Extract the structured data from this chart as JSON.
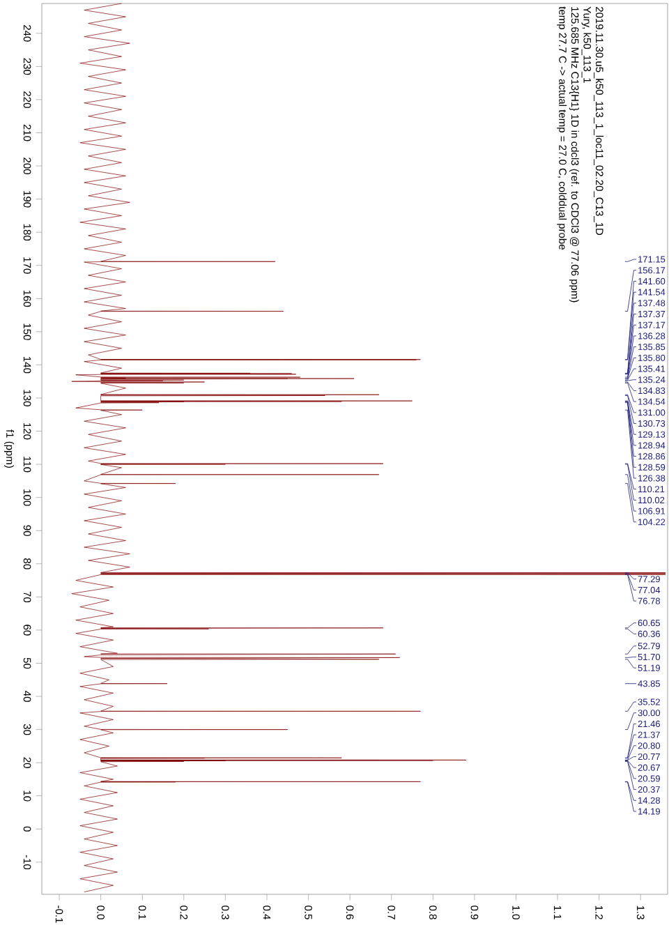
{
  "chart_data": {
    "type": "line",
    "title": "2019.11.30.u5_k50_113_1_loc11_02.20_C13_1D",
    "subtitle": "Yury, k50_113_1",
    "orientation": "horizontal",
    "ylabel": "f1 (ppm)",
    "ylim": [
      -19.7,
      249
    ],
    "xlim": [
      -0.142,
      1.365
    ],
    "yticks": [
      240,
      230,
      220,
      210,
      200,
      190,
      180,
      170,
      160,
      150,
      140,
      130,
      120,
      110,
      100,
      90,
      80,
      70,
      60,
      50,
      40,
      30,
      20,
      10,
      0,
      -10
    ],
    "xticks": [
      {
        "value": -0.1,
        "label": "-0.1"
      },
      {
        "value": 0,
        "label": "0.0"
      },
      {
        "value": 0.1,
        "label": "0.1"
      },
      {
        "value": 0.2,
        "label": "0.2"
      },
      {
        "value": 0.3,
        "label": "0.3"
      },
      {
        "value": 0.4,
        "label": "0.4"
      },
      {
        "value": 0.5,
        "label": "0.5"
      },
      {
        "value": 0.6,
        "label": "0.6"
      },
      {
        "value": 0.7,
        "label": "0.7"
      },
      {
        "value": 0.8,
        "label": "0.8"
      },
      {
        "value": 0.9,
        "label": "0.9"
      },
      {
        "value": 1,
        "label": "1.0"
      },
      {
        "value": 1.1,
        "label": "1.1"
      },
      {
        "value": 1.2,
        "label": "1.2"
      },
      {
        "value": 1.3,
        "label": "1.3"
      }
    ],
    "series": [
      {
        "color": "#800000",
        "x": [
          249,
          247,
          245,
          243,
          241,
          239,
          237,
          235,
          233,
          231,
          229,
          227,
          225,
          223,
          221,
          219,
          217,
          215,
          213,
          211,
          209,
          207,
          205,
          203,
          201,
          199,
          197,
          195,
          193,
          191,
          189,
          187,
          185,
          183,
          181,
          179,
          177,
          175,
          173,
          171.2,
          171.15,
          171.1,
          171,
          169,
          167,
          165,
          163,
          161,
          159,
          157,
          156.22,
          156.17,
          156.12,
          155,
          153,
          151,
          149,
          147,
          145,
          143,
          141.65,
          141.6,
          141.57,
          141.54,
          141.49,
          141,
          139,
          137.53,
          137.48,
          137.43,
          137.37,
          137.27,
          137.17,
          137.1,
          137,
          136.33,
          136.28,
          136.2,
          136,
          135.9,
          135.85,
          135.83,
          135.8,
          135.7,
          135.5,
          135.41,
          135.3,
          135.24,
          135.15,
          135,
          134.9,
          134.83,
          134.7,
          134.54,
          134.45,
          133,
          131.05,
          131,
          130.9,
          130.73,
          130.65,
          129.2,
          129.13,
          129.03,
          128.94,
          128.9,
          128.86,
          128.7,
          128.59,
          128.5,
          127,
          126.45,
          126.38,
          126.3,
          125,
          123,
          121,
          119,
          117,
          115,
          113,
          111,
          110.26,
          110.21,
          110.1,
          110.02,
          109.95,
          109,
          106.96,
          106.91,
          106.86,
          105,
          104.27,
          104.22,
          104.17,
          103,
          101,
          99,
          97,
          95,
          93,
          91,
          89,
          87,
          85,
          83,
          81,
          79,
          77.34,
          77.29,
          77.16,
          77.04,
          76.9,
          76.78,
          76.73,
          75,
          73,
          71,
          69,
          67,
          65,
          63,
          61,
          60.7,
          60.65,
          60.5,
          60.36,
          60.3,
          59,
          57,
          55,
          53,
          52.84,
          52.79,
          52.5,
          52,
          51.75,
          51.7,
          51.45,
          51.19,
          51.14,
          49,
          47,
          45,
          43.9,
          43.85,
          43.8,
          43,
          41,
          39,
          37,
          35.57,
          35.52,
          35.47,
          35,
          33,
          31,
          30.05,
          30,
          29.95,
          29,
          27,
          25,
          23,
          21.51,
          21.46,
          21.42,
          21.37,
          21.3,
          20.83,
          20.8,
          20.785,
          20.77,
          20.72,
          20.67,
          20.63,
          20.59,
          20.5,
          20.37,
          20.3,
          19,
          17,
          15,
          14.33,
          14.28,
          14.23,
          14.19,
          14.14,
          13,
          11,
          9,
          7,
          5,
          3,
          1,
          -1,
          -3,
          -5,
          -7,
          -9,
          -11,
          -13,
          -15,
          -17,
          -19
        ],
        "values": [
          0.05,
          -0.04,
          0.06,
          -0.03,
          0.05,
          -0.04,
          0.07,
          -0.03,
          0.05,
          -0.05,
          0.06,
          -0.03,
          0.05,
          -0.04,
          0.06,
          -0.04,
          0.05,
          -0.03,
          0.06,
          -0.04,
          0.05,
          -0.05,
          0.06,
          -0.03,
          0.05,
          -0.04,
          0.06,
          -0.04,
          0.05,
          -0.03,
          0.07,
          -0.04,
          0.05,
          -0.05,
          0.06,
          -0.03,
          0.05,
          -0.04,
          0.06,
          0,
          0.42,
          0,
          -0.04,
          0.05,
          -0.03,
          0.06,
          -0.04,
          0.05,
          -0.04,
          0.06,
          0,
          0.44,
          0,
          -0.03,
          0.05,
          -0.04,
          0.06,
          -0.04,
          0.05,
          -0.03,
          0,
          0.77,
          0,
          0.76,
          0,
          -0.04,
          0.05,
          0,
          0.36,
          0,
          0.46,
          0,
          0.47,
          0,
          -0.06,
          0,
          0.48,
          0,
          0.06,
          0,
          0.61,
          0,
          0.45,
          0,
          0,
          0.2,
          0,
          0.15,
          0,
          -0.07,
          0,
          0.25,
          0,
          0.2,
          0,
          0.06,
          0,
          0.67,
          0,
          0.54,
          0,
          0,
          0.75,
          0,
          0.58,
          0,
          0.2,
          0,
          0.14,
          0,
          -0.06,
          0,
          0.1,
          0,
          0.05,
          -0.04,
          0.06,
          -0.03,
          0.05,
          -0.04,
          0.06,
          -0.03,
          0,
          0.68,
          0,
          0.3,
          0,
          0.05,
          0,
          0.67,
          0,
          -0.04,
          0,
          0.18,
          0,
          0.06,
          -0.04,
          0.05,
          -0.03,
          0.06,
          -0.04,
          0.05,
          -0.03,
          0.06,
          -0.04,
          0.07,
          -0.03,
          0.07,
          0,
          1.36,
          0,
          1.36,
          0,
          1.36,
          0,
          -0.06,
          0.03,
          -0.07,
          0.02,
          -0.05,
          0.03,
          -0.06,
          0.03,
          0,
          0.68,
          0,
          0.26,
          0,
          -0.06,
          0.03,
          -0.05,
          0.04,
          0,
          0.71,
          0,
          -0.04,
          0,
          0.72,
          0,
          0.67,
          0,
          0.03,
          -0.05,
          0.02,
          0,
          0.16,
          0,
          -0.05,
          0.03,
          -0.04,
          0.03,
          0,
          0.77,
          0,
          -0.05,
          0.03,
          -0.04,
          0,
          0.45,
          0,
          0.03,
          -0.05,
          0.02,
          -0.04,
          0,
          0.58,
          0,
          0.25,
          0,
          0,
          0.88,
          0,
          0.67,
          0,
          0.8,
          0,
          0.3,
          0,
          0.2,
          0,
          0.04,
          -0.05,
          0.03,
          0,
          0.77,
          0,
          0.18,
          0,
          -0.04,
          0.04,
          -0.05,
          0.03,
          -0.04,
          0.04,
          -0.05,
          0.03,
          -0.04,
          0.04,
          -0.05,
          0.03,
          -0.04,
          0.04,
          -0.05,
          0.03,
          -0.04
        ]
      }
    ],
    "annotations": [
      "125.685 MHz C13{H1} 1D in cdcl3 (ref. to CDCl3 @ 77.06 ppm)",
      "temp 27.7 C -> actual temp = 27.0 C, colddual probe",
      "171.15",
      "156.17",
      "141.60",
      "141.54",
      "137.48",
      "137.37",
      "137.17",
      "136.28",
      "135.85",
      "135.80",
      "135.41",
      "135.24",
      "134.83",
      "134.54",
      "131.00",
      "130.73",
      "129.13",
      "128.94",
      "128.86",
      "128.59",
      "126.38",
      "110.21",
      "110.02",
      "106.91",
      "104.22",
      "77.29",
      "77.04",
      "76.78",
      "60.65",
      "60.36",
      "52.79",
      "51.70",
      "51.19",
      "43.85",
      "35.52",
      "30.00",
      "21.46",
      "21.37",
      "20.80",
      "20.77",
      "20.67",
      "20.59",
      "20.37",
      "14.28",
      "14.19"
    ]
  }
}
